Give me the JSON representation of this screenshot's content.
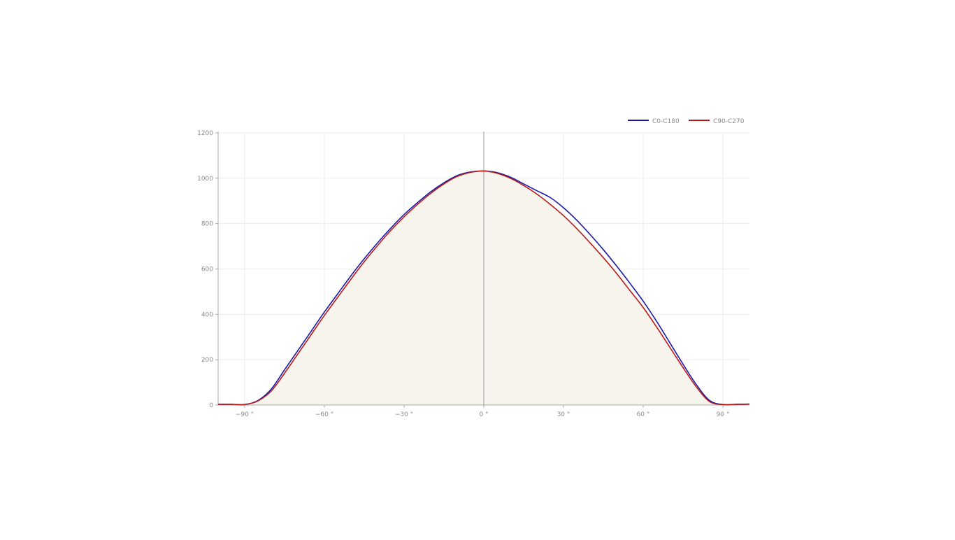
{
  "chart_data": {
    "type": "line",
    "title": "",
    "xlabel": "",
    "ylabel": "",
    "xlim": [
      -100,
      100
    ],
    "ylim": [
      0,
      1200
    ],
    "x_ticks": [
      -90,
      -60,
      -30,
      0,
      30,
      60,
      90
    ],
    "x_tick_labels": [
      "−90 °",
      "−60 °",
      "−30 °",
      "0 °",
      "30 °",
      "60 °",
      "90 °"
    ],
    "y_ticks": [
      0,
      200,
      400,
      600,
      800,
      1000,
      1200
    ],
    "y_tick_labels": [
      "0",
      "200",
      "400",
      "600",
      "800",
      "1000",
      "1200"
    ],
    "grid": true,
    "legend_position": "top-right",
    "area_fill_color": "#f7f4ee",
    "series": [
      {
        "name": "C0-C180",
        "color": "#1a1aa6",
        "x": [
          -100,
          -95,
          -90,
          -85,
          -80,
          -75,
          -70,
          -65,
          -60,
          -55,
          -50,
          -45,
          -40,
          -35,
          -30,
          -25,
          -20,
          -15,
          -10,
          -5,
          0,
          5,
          10,
          15,
          20,
          25,
          30,
          35,
          40,
          45,
          50,
          55,
          60,
          65,
          70,
          75,
          80,
          85,
          90,
          95,
          100
        ],
        "y": [
          3,
          3,
          2,
          20,
          70,
          155,
          240,
          325,
          410,
          490,
          570,
          645,
          715,
          780,
          840,
          892,
          940,
          980,
          1012,
          1028,
          1032,
          1025,
          1005,
          975,
          945,
          915,
          870,
          815,
          752,
          685,
          613,
          537,
          458,
          370,
          275,
          180,
          90,
          20,
          2,
          3,
          4
        ]
      },
      {
        "name": "C90-C270",
        "color": "#b81a1a",
        "x": [
          -100,
          -95,
          -90,
          -85,
          -80,
          -75,
          -70,
          -65,
          -60,
          -55,
          -50,
          -45,
          -40,
          -35,
          -30,
          -25,
          -20,
          -15,
          -10,
          -5,
          0,
          5,
          10,
          15,
          20,
          25,
          30,
          35,
          40,
          45,
          50,
          55,
          60,
          65,
          70,
          75,
          80,
          85,
          90,
          95,
          100
        ],
        "y": [
          3,
          3,
          2,
          18,
          62,
          140,
          225,
          310,
          395,
          475,
          555,
          632,
          703,
          770,
          830,
          884,
          933,
          975,
          1008,
          1026,
          1032,
          1022,
          1000,
          968,
          930,
          885,
          835,
          778,
          715,
          650,
          580,
          505,
          430,
          345,
          255,
          165,
          80,
          15,
          2,
          3,
          4
        ]
      }
    ]
  }
}
